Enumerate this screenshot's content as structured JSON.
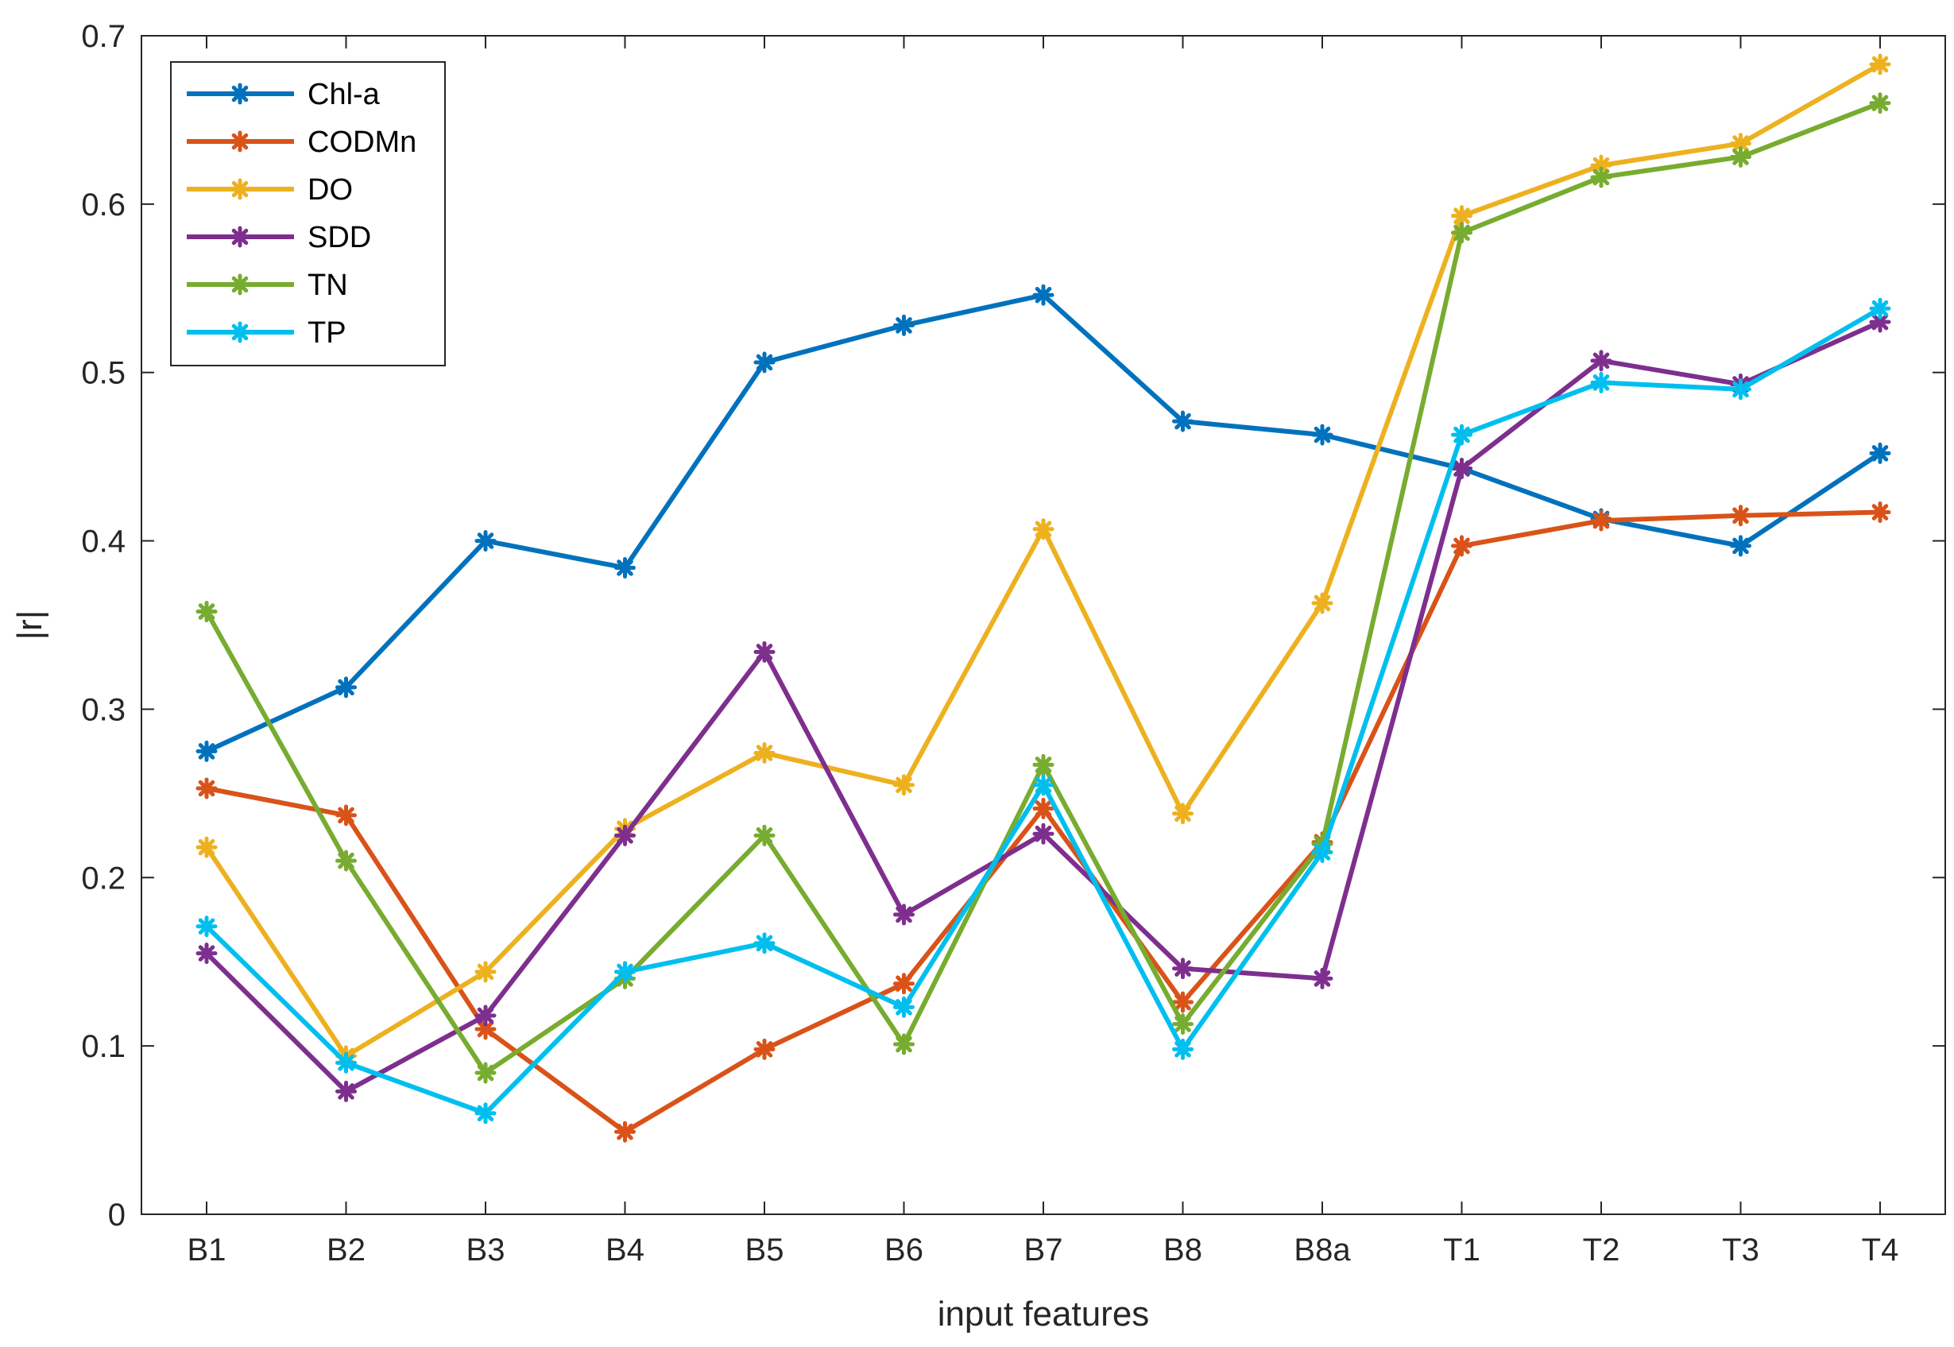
{
  "chart_data": {
    "type": "line",
    "xlabel": "input features",
    "ylabel": "|r|",
    "categories": [
      "B1",
      "B2",
      "B3",
      "B4",
      "B5",
      "B6",
      "B7",
      "B8",
      "B8a",
      "T1",
      "T2",
      "T3",
      "T4"
    ],
    "ylim": [
      0,
      0.7
    ],
    "yticks": [
      "0",
      "0.1",
      "0.2",
      "0.3",
      "0.4",
      "0.5",
      "0.6",
      "0.7"
    ],
    "grid": false,
    "legend_position": "top-left",
    "marker": "asterisk",
    "series": [
      {
        "name": "Chl-a",
        "color": "#0072BD",
        "values": [
          0.275,
          0.313,
          0.4,
          0.384,
          0.506,
          0.528,
          0.546,
          0.471,
          0.463,
          0.443,
          0.413,
          0.397,
          0.452
        ]
      },
      {
        "name": "CODMn",
        "color": "#D95319",
        "values": [
          0.253,
          0.237,
          0.11,
          0.049,
          0.098,
          0.137,
          0.241,
          0.126,
          0.221,
          0.397,
          0.412,
          0.415,
          0.417
        ]
      },
      {
        "name": "DO",
        "color": "#EDB120",
        "values": [
          0.218,
          0.094,
          0.144,
          0.229,
          0.274,
          0.255,
          0.407,
          0.238,
          0.363,
          0.593,
          0.623,
          0.636,
          0.683
        ]
      },
      {
        "name": "SDD",
        "color": "#7E2F8E",
        "values": [
          0.155,
          0.073,
          0.118,
          0.225,
          0.334,
          0.178,
          0.226,
          0.146,
          0.14,
          0.443,
          0.507,
          0.493,
          0.53
        ]
      },
      {
        "name": "TN",
        "color": "#77AC30",
        "values": [
          0.358,
          0.21,
          0.084,
          0.14,
          0.225,
          0.101,
          0.267,
          0.113,
          0.22,
          0.583,
          0.616,
          0.628,
          0.66
        ]
      },
      {
        "name": "TP",
        "color": "#00BFEF",
        "values": [
          0.171,
          0.09,
          0.06,
          0.144,
          0.161,
          0.123,
          0.255,
          0.098,
          0.215,
          0.463,
          0.494,
          0.49,
          0.538
        ]
      }
    ]
  }
}
